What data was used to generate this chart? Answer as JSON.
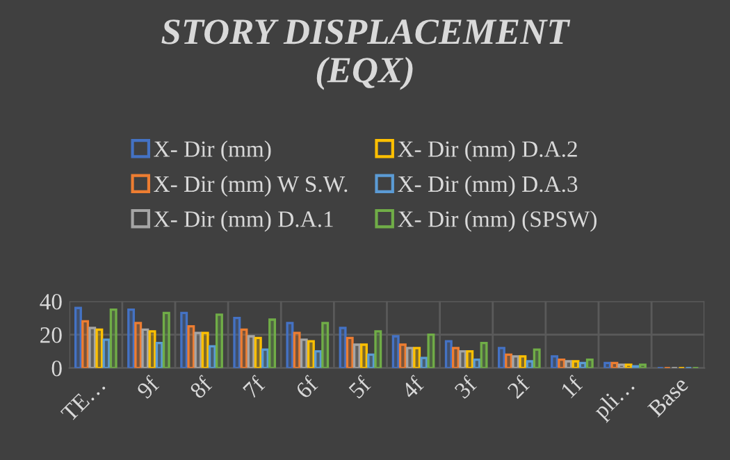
{
  "chart_data": {
    "type": "bar",
    "title": "STORY DISPLACEMENT\n(EQX)",
    "categories": [
      "TE…",
      "9f",
      "8f",
      "7f",
      "6f",
      "5f",
      "4f",
      "3f",
      "2f",
      "1f",
      "pli…",
      "Base"
    ],
    "series": [
      {
        "name": "X- Dir (mm)",
        "color": "#4472c4",
        "values": [
          36,
          35,
          33,
          30,
          27,
          24,
          19,
          16,
          12,
          7,
          3,
          0
        ]
      },
      {
        "name": "X- Dir (mm) W S.W.",
        "color": "#ed7d31",
        "values": [
          28,
          27,
          25,
          23,
          21,
          18,
          14,
          12,
          8,
          5,
          3,
          0
        ]
      },
      {
        "name": "X- Dir (mm) D.A.1",
        "color": "#a5a5a5",
        "values": [
          24,
          23,
          21,
          19,
          17,
          14,
          12,
          10,
          7,
          4,
          2,
          0
        ]
      },
      {
        "name": "X- Dir (mm) D.A.2",
        "color": "#ffc000",
        "values": [
          23,
          22,
          21,
          18,
          16,
          14,
          12,
          10,
          7,
          4,
          2,
          0
        ]
      },
      {
        "name": "X- Dir (mm) D.A.3",
        "color": "#5b9bd5",
        "values": [
          17,
          15,
          13,
          11,
          10,
          8,
          6,
          5,
          4,
          3,
          1,
          0
        ]
      },
      {
        "name": "X- Dir (mm) (SPSW)",
        "color": "#70ad47",
        "values": [
          35,
          33,
          32,
          29,
          27,
          22,
          20,
          15,
          11,
          5,
          2,
          0
        ]
      }
    ],
    "ylim": [
      0,
      40
    ],
    "yticks": [
      0,
      20,
      40
    ],
    "grid": true,
    "legend": "top"
  }
}
